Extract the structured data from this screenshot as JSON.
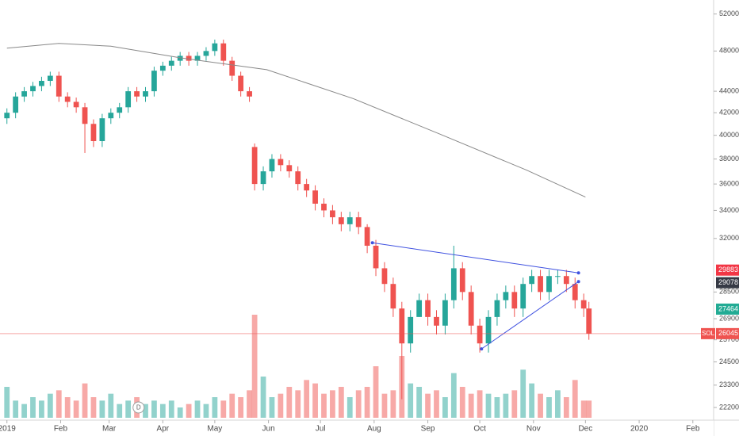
{
  "chart_data": {
    "type": "candlestick",
    "log_scale": true,
    "xlim": [
      -4,
      408
    ],
    "ylim": [
      21600,
      53600
    ],
    "xticks": [
      {
        "value": 0,
        "label": "2019"
      },
      {
        "value": 31,
        "label": "Feb"
      },
      {
        "value": 59,
        "label": "Mar"
      },
      {
        "value": 90,
        "label": "Apr"
      },
      {
        "value": 120,
        "label": "May"
      },
      {
        "value": 151,
        "label": "Jun"
      },
      {
        "value": 181,
        "label": "Jul"
      },
      {
        "value": 212,
        "label": "Aug"
      },
      {
        "value": 243,
        "label": "Sep"
      },
      {
        "value": 273,
        "label": "Oct"
      },
      {
        "value": 304,
        "label": "Nov"
      },
      {
        "value": 334,
        "label": "Dec"
      },
      {
        "value": 365,
        "label": "2020"
      },
      {
        "value": 396,
        "label": "Feb"
      }
    ],
    "yticks": [
      22200,
      23300,
      24500,
      25700,
      26900,
      28500,
      32000,
      34000,
      36000,
      38000,
      40000,
      42000,
      44000,
      48000,
      52000
    ],
    "up_color": "#26a69a",
    "down_color": "#ef5350",
    "x": [
      0,
      5,
      10,
      15,
      20,
      25,
      30,
      35,
      40,
      45,
      50,
      55,
      60,
      65,
      70,
      75,
      80,
      85,
      90,
      95,
      100,
      105,
      110,
      115,
      120,
      125,
      130,
      135,
      140,
      143,
      148,
      153,
      158,
      163,
      168,
      173,
      178,
      183,
      188,
      193,
      198,
      203,
      208,
      213,
      218,
      223,
      228,
      233,
      238,
      243,
      248,
      253,
      258,
      263,
      268,
      273,
      278,
      283,
      288,
      293,
      298,
      303,
      308,
      313,
      318,
      323,
      328,
      333,
      336
    ],
    "open": [
      41500,
      42000,
      43500,
      44000,
      44500,
      45000,
      45500,
      43500,
      43000,
      42500,
      41000,
      39500,
      41500,
      42000,
      42500,
      44000,
      43500,
      44000,
      46000,
      46500,
      47000,
      47500,
      47000,
      47500,
      48000,
      48800,
      47000,
      45500,
      44000,
      39000,
      36000,
      37000,
      38000,
      37500,
      37000,
      36000,
      35500,
      34500,
      34000,
      33500,
      33000,
      33500,
      32800,
      31500,
      30000,
      29000,
      27500,
      25500,
      27000,
      28000,
      27000,
      26500,
      28000,
      30000,
      28500,
      26500,
      25500,
      27000,
      28000,
      28500,
      27500,
      29000,
      29500,
      28500,
      29500,
      29500,
      29000,
      28000,
      27500
    ],
    "high": [
      42400,
      43900,
      44400,
      44900,
      45400,
      45900,
      45900,
      43900,
      43400,
      42900,
      41400,
      41900,
      42400,
      42900,
      44400,
      44400,
      44400,
      46400,
      46900,
      47400,
      47900,
      47900,
      47900,
      48400,
      49200,
      49200,
      47400,
      45900,
      44400,
      39300,
      37400,
      38400,
      38400,
      37900,
      37400,
      36400,
      35900,
      34900,
      34400,
      33900,
      33900,
      33900,
      33000,
      31900,
      30400,
      29400,
      27900,
      27400,
      28400,
      28400,
      27400,
      28400,
      31500,
      30400,
      28900,
      26900,
      27400,
      28400,
      28900,
      28900,
      29400,
      29900,
      29900,
      29900,
      29900,
      29900,
      29400,
      28400,
      27900
    ],
    "low": [
      41000,
      41500,
      43000,
      43500,
      44000,
      44500,
      43000,
      42500,
      42000,
      38500,
      39000,
      39000,
      41000,
      41500,
      42000,
      43000,
      43000,
      43500,
      45500,
      46000,
      46500,
      46500,
      46500,
      47000,
      47500,
      46500,
      45000,
      43500,
      43000,
      35500,
      35500,
      36500,
      37000,
      36500,
      35500,
      35000,
      34000,
      33500,
      33000,
      32500,
      32500,
      32300,
      31000,
      29500,
      28500,
      27000,
      22600,
      25000,
      27000,
      26500,
      26000,
      26000,
      27500,
      28000,
      26000,
      25000,
      25000,
      26500,
      27500,
      27000,
      27000,
      28500,
      28000,
      28000,
      29000,
      28500,
      27500,
      27000,
      25700
    ],
    "close": [
      42000,
      43500,
      44000,
      44500,
      45000,
      45500,
      43500,
      43000,
      42500,
      41000,
      39500,
      41500,
      42000,
      42500,
      44000,
      43500,
      44000,
      46000,
      46500,
      47000,
      47500,
      47000,
      47500,
      48000,
      48800,
      47000,
      45500,
      44000,
      43500,
      36000,
      37000,
      38000,
      37500,
      37000,
      36000,
      35500,
      34500,
      34000,
      33500,
      33000,
      33500,
      32800,
      31500,
      30000,
      29000,
      27500,
      25500,
      27000,
      28000,
      27000,
      26500,
      28000,
      30000,
      28500,
      26500,
      25500,
      27000,
      28000,
      28500,
      27500,
      29000,
      29500,
      28500,
      29500,
      29500,
      29000,
      28000,
      27500,
      26045
    ],
    "volume": [
      45,
      25,
      20,
      30,
      25,
      35,
      40,
      30,
      25,
      50,
      30,
      25,
      35,
      20,
      25,
      30,
      20,
      25,
      20,
      25,
      15,
      20,
      25,
      20,
      30,
      25,
      35,
      30,
      40,
      150,
      60,
      30,
      35,
      45,
      40,
      55,
      50,
      35,
      40,
      45,
      30,
      40,
      45,
      75,
      35,
      40,
      90,
      50,
      45,
      35,
      40,
      30,
      65,
      45,
      35,
      40,
      35,
      30,
      35,
      40,
      70,
      50,
      35,
      30,
      40,
      30,
      55,
      25,
      25
    ],
    "moving_average": {
      "color": "#888888",
      "x": [
        0,
        30,
        60,
        100,
        150,
        200,
        250,
        300,
        334
      ],
      "values": [
        48300,
        48800,
        48500,
        47300,
        46100,
        43300,
        40100,
        37100,
        35000
      ]
    },
    "trendlines": [
      {
        "color": "#3f51e0",
        "x": [
          211,
          330
        ],
        "values": [
          31700,
          29700
        ]
      },
      {
        "color": "#3f51e0",
        "x": [
          274,
          330
        ],
        "values": [
          25200,
          29150
        ]
      }
    ],
    "price_labels": [
      {
        "value": 29883,
        "color": "#f23645"
      },
      {
        "value": 29078,
        "color": "#363a45"
      },
      {
        "value": 27464,
        "color": "#22ab94"
      }
    ],
    "current_line": {
      "label": "SOL",
      "value": 26045,
      "color": "#ef5350"
    },
    "event_marker": {
      "label": "D",
      "x": 76
    }
  }
}
